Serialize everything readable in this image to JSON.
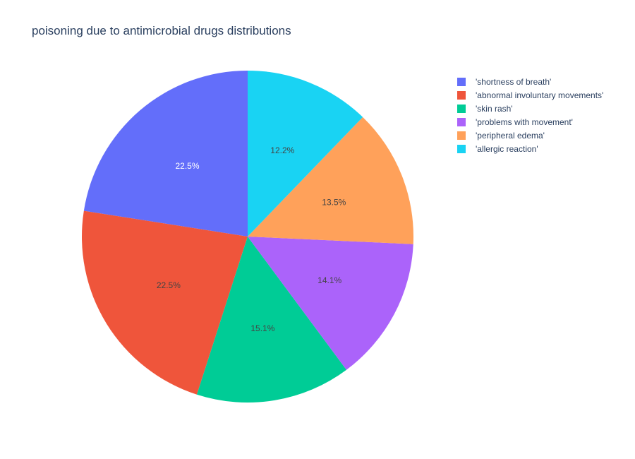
{
  "chart_data": {
    "type": "pie",
    "title": "poisoning due to antimicrobial drugs distributions",
    "labels": [
      "'shortness of breath'",
      "'abnormal involuntary movements'",
      "'skin rash'",
      "'problems with movement'",
      "'peripheral edema'",
      "'allergic reaction'"
    ],
    "values": [
      22.5,
      22.5,
      15.1,
      14.1,
      13.5,
      12.2
    ],
    "value_labels": [
      "22.5%",
      "22.5%",
      "15.1%",
      "14.1%",
      "13.5%",
      "12.2%"
    ],
    "colors": [
      "#636efa",
      "#ef553b",
      "#00cc96",
      "#ab63fa",
      "#ffa15a",
      "#19d3f3"
    ],
    "label_colors": [
      "#ffffff",
      "#444444",
      "#444444",
      "#444444",
      "#444444",
      "#444444"
    ],
    "direction": "counterclockwise",
    "start_angle": "top",
    "legend_position": "top-right"
  }
}
